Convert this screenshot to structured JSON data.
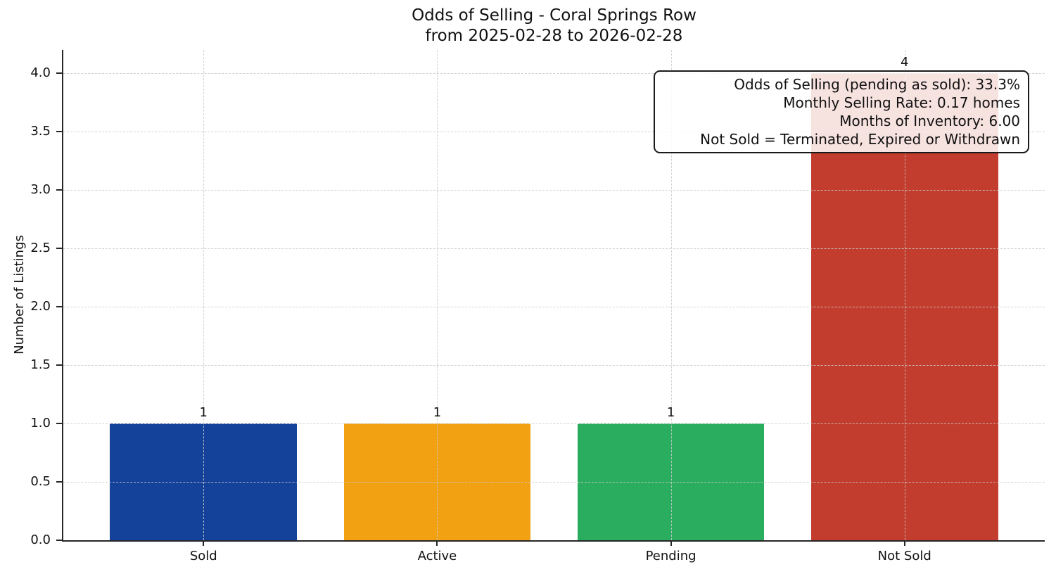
{
  "chart_data": {
    "type": "bar",
    "title": "Odds of Selling - Coral Springs Row",
    "subtitle": "from 2025-02-28 to 2026-02-28",
    "categories": [
      "Sold",
      "Active",
      "Pending",
      "Not Sold"
    ],
    "values": [
      1,
      1,
      1,
      4
    ],
    "bar_value_labels": [
      "1",
      "1",
      "1",
      "4"
    ],
    "bar_colors": [
      "#14419A",
      "#F1A112",
      "#2BAD60",
      "#C23D2D"
    ],
    "xlabel": "",
    "ylabel": "Number of Listings",
    "ylim": [
      0,
      4.2
    ],
    "yticks": [
      0,
      0.5,
      1,
      1.5,
      2,
      2.5,
      3,
      3.5,
      4
    ],
    "ytick_labels": [
      "0.0",
      "0.5",
      "1.0",
      "1.5",
      "2.0",
      "2.5",
      "3.0",
      "3.5",
      "4.0"
    ],
    "grid": "dashed-both-axes",
    "grid_above_bars": true,
    "legend": "none",
    "annotation": {
      "position": "top-right",
      "lines": [
        "Odds of Selling (pending as sold): 33.3%",
        "Monthly Selling Rate: 0.17 homes",
        "Months of Inventory: 6.00",
        "Not Sold = Terminated, Expired or Withdrawn"
      ]
    },
    "colors": {
      "axis": "#262626",
      "grid": "#cacaca",
      "text": "#111111",
      "background": "#ffffff",
      "annotation_border": "#1a1a1a",
      "annotation_bg": "rgba(255,255,255,0.85)"
    }
  }
}
